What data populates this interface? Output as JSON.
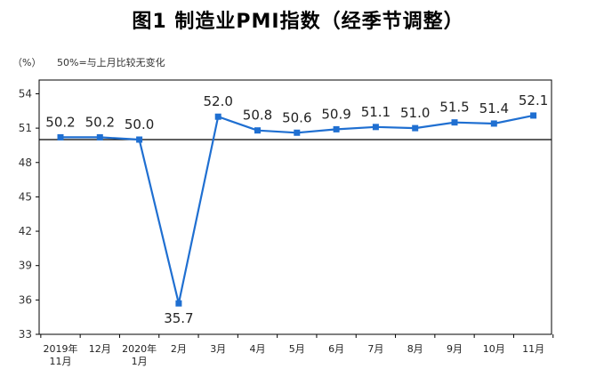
{
  "chart_title": "图1  制造业PMI指数（经季节调整）",
  "unit_label": "（%）",
  "note": "50%=与上月比较无变化",
  "colors": {
    "line": "#1f6fd1",
    "marker": "#1f6fd1",
    "axis": "#000000",
    "baseline": "#000000"
  },
  "chart_data": {
    "type": "line",
    "title": "图1  制造业PMI指数（经季节调整）",
    "xlabel": "",
    "ylabel": "（%）",
    "ylim": [
      33,
      55.2
    ],
    "yticks": [
      33,
      36,
      39,
      42,
      45,
      48,
      51,
      54
    ],
    "grid": false,
    "reference_line": 50,
    "categories": [
      [
        "2019年",
        "11月"
      ],
      [
        "12月"
      ],
      [
        "2020年",
        "1月"
      ],
      [
        "2月"
      ],
      [
        "3月"
      ],
      [
        "4月"
      ],
      [
        "5月"
      ],
      [
        "6月"
      ],
      [
        "7月"
      ],
      [
        "8月"
      ],
      [
        "9月"
      ],
      [
        "10月"
      ],
      [
        "11月"
      ]
    ],
    "values": [
      50.2,
      50.2,
      50.0,
      35.7,
      52.0,
      50.8,
      50.6,
      50.9,
      51.1,
      51.0,
      51.5,
      51.4,
      52.1
    ],
    "data_labels": [
      "50.2",
      "50.2",
      "50.0",
      "35.7",
      "52.0",
      "50.8",
      "50.6",
      "50.9",
      "51.1",
      "51.0",
      "51.5",
      "51.4",
      "52.1"
    ]
  }
}
